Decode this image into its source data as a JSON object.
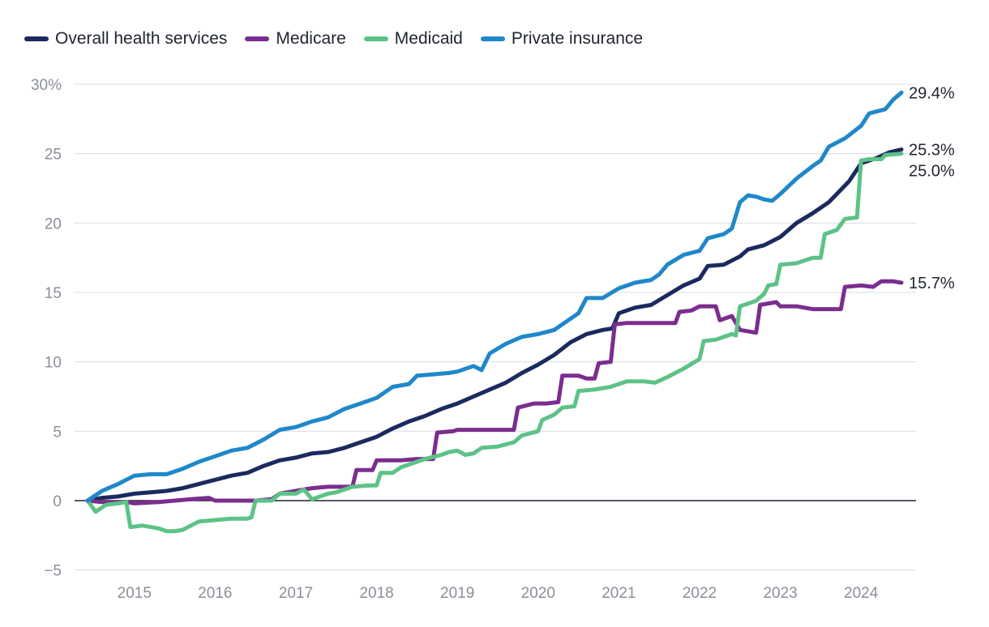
{
  "chart_data": {
    "type": "line",
    "title": "",
    "xlabel": "",
    "ylabel": "",
    "ylim": [
      -5,
      30
    ],
    "xlim": [
      2014.42,
      2024.5
    ],
    "yticks": [
      {
        "value": 30,
        "label": "30%"
      },
      {
        "value": 25,
        "label": "25"
      },
      {
        "value": 20,
        "label": "20"
      },
      {
        "value": 15,
        "label": "15"
      },
      {
        "value": 10,
        "label": "10"
      },
      {
        "value": 5,
        "label": "5"
      },
      {
        "value": 0,
        "label": "0"
      },
      {
        "value": -5,
        "label": "−5"
      }
    ],
    "xticks": [
      {
        "value": 2015,
        "label": "2015"
      },
      {
        "value": 2016,
        "label": "2016"
      },
      {
        "value": 2017,
        "label": "2017"
      },
      {
        "value": 2018,
        "label": "2018"
      },
      {
        "value": 2019,
        "label": "2019"
      },
      {
        "value": 2020,
        "label": "2020"
      },
      {
        "value": 2021,
        "label": "2021"
      },
      {
        "value": 2022,
        "label": "2022"
      },
      {
        "value": 2023,
        "label": "2023"
      },
      {
        "value": 2024,
        "label": "2024"
      }
    ],
    "legend_position": "top-left",
    "series": [
      {
        "name": "Overall health services",
        "color": "#1b2a5e",
        "end_label": "25.3%",
        "points": [
          [
            2014.42,
            0
          ],
          [
            2014.6,
            0.2
          ],
          [
            2014.8,
            0.3
          ],
          [
            2015.0,
            0.5
          ],
          [
            2015.2,
            0.6
          ],
          [
            2015.4,
            0.7
          ],
          [
            2015.6,
            0.9
          ],
          [
            2015.8,
            1.2
          ],
          [
            2016.0,
            1.5
          ],
          [
            2016.2,
            1.8
          ],
          [
            2016.4,
            2.0
          ],
          [
            2016.6,
            2.5
          ],
          [
            2016.8,
            2.9
          ],
          [
            2017.0,
            3.1
          ],
          [
            2017.2,
            3.4
          ],
          [
            2017.4,
            3.5
          ],
          [
            2017.6,
            3.8
          ],
          [
            2017.8,
            4.2
          ],
          [
            2018.0,
            4.6
          ],
          [
            2018.2,
            5.2
          ],
          [
            2018.4,
            5.7
          ],
          [
            2018.6,
            6.1
          ],
          [
            2018.8,
            6.6
          ],
          [
            2019.0,
            7.0
          ],
          [
            2019.2,
            7.5
          ],
          [
            2019.4,
            8.0
          ],
          [
            2019.6,
            8.5
          ],
          [
            2019.8,
            9.2
          ],
          [
            2020.0,
            9.8
          ],
          [
            2020.2,
            10.5
          ],
          [
            2020.4,
            11.4
          ],
          [
            2020.6,
            12.0
          ],
          [
            2020.8,
            12.3
          ],
          [
            2020.92,
            12.4
          ],
          [
            2021.0,
            13.5
          ],
          [
            2021.2,
            13.9
          ],
          [
            2021.4,
            14.1
          ],
          [
            2021.6,
            14.8
          ],
          [
            2021.8,
            15.5
          ],
          [
            2022.0,
            16.0
          ],
          [
            2022.1,
            16.9
          ],
          [
            2022.3,
            17.0
          ],
          [
            2022.5,
            17.6
          ],
          [
            2022.6,
            18.1
          ],
          [
            2022.8,
            18.4
          ],
          [
            2023.0,
            19.0
          ],
          [
            2023.2,
            20.0
          ],
          [
            2023.4,
            20.7
          ],
          [
            2023.6,
            21.5
          ],
          [
            2023.75,
            22.4
          ],
          [
            2023.85,
            23.0
          ],
          [
            2024.0,
            24.3
          ],
          [
            2024.2,
            24.7
          ],
          [
            2024.35,
            25.1
          ],
          [
            2024.5,
            25.3
          ]
        ]
      },
      {
        "name": "Medicare",
        "color": "#7b2d8e",
        "end_label": "15.7%",
        "points": [
          [
            2014.42,
            0
          ],
          [
            2014.6,
            -0.1
          ],
          [
            2014.9,
            -0.1
          ],
          [
            2015.0,
            -0.2
          ],
          [
            2015.3,
            -0.1
          ],
          [
            2015.5,
            0.0
          ],
          [
            2015.7,
            0.1
          ],
          [
            2015.92,
            0.2
          ],
          [
            2016.0,
            0.0
          ],
          [
            2016.3,
            0.0
          ],
          [
            2016.5,
            0.0
          ],
          [
            2016.7,
            0.1
          ],
          [
            2016.8,
            0.5
          ],
          [
            2017.0,
            0.7
          ],
          [
            2017.2,
            0.9
          ],
          [
            2017.4,
            1.0
          ],
          [
            2017.6,
            1.0
          ],
          [
            2017.7,
            1.0
          ],
          [
            2017.75,
            2.2
          ],
          [
            2017.95,
            2.2
          ],
          [
            2018.0,
            2.9
          ],
          [
            2018.3,
            2.9
          ],
          [
            2018.5,
            3.0
          ],
          [
            2018.7,
            3.0
          ],
          [
            2018.75,
            4.9
          ],
          [
            2018.95,
            5.0
          ],
          [
            2019.0,
            5.1
          ],
          [
            2019.3,
            5.1
          ],
          [
            2019.5,
            5.1
          ],
          [
            2019.7,
            5.1
          ],
          [
            2019.75,
            6.7
          ],
          [
            2019.95,
            7.0
          ],
          [
            2020.1,
            7.0
          ],
          [
            2020.25,
            7.1
          ],
          [
            2020.3,
            9.0
          ],
          [
            2020.5,
            9.0
          ],
          [
            2020.6,
            8.8
          ],
          [
            2020.7,
            8.8
          ],
          [
            2020.75,
            9.9
          ],
          [
            2020.9,
            10.0
          ],
          [
            2020.95,
            12.7
          ],
          [
            2021.1,
            12.8
          ],
          [
            2021.4,
            12.8
          ],
          [
            2021.6,
            12.8
          ],
          [
            2021.7,
            12.8
          ],
          [
            2021.75,
            13.6
          ],
          [
            2021.9,
            13.7
          ],
          [
            2022.0,
            14.0
          ],
          [
            2022.2,
            14.0
          ],
          [
            2022.25,
            13.0
          ],
          [
            2022.4,
            13.3
          ],
          [
            2022.5,
            12.3
          ],
          [
            2022.7,
            12.1
          ],
          [
            2022.75,
            14.1
          ],
          [
            2022.95,
            14.3
          ],
          [
            2023.0,
            14.0
          ],
          [
            2023.2,
            14.0
          ],
          [
            2023.4,
            13.8
          ],
          [
            2023.6,
            13.8
          ],
          [
            2023.75,
            13.8
          ],
          [
            2023.8,
            15.4
          ],
          [
            2024.0,
            15.5
          ],
          [
            2024.15,
            15.4
          ],
          [
            2024.25,
            15.8
          ],
          [
            2024.4,
            15.8
          ],
          [
            2024.5,
            15.7
          ]
        ]
      },
      {
        "name": "Medicaid",
        "color": "#5dc287",
        "end_label": "25.0%",
        "points": [
          [
            2014.42,
            0
          ],
          [
            2014.52,
            -0.8
          ],
          [
            2014.65,
            -0.3
          ],
          [
            2014.8,
            -0.2
          ],
          [
            2014.9,
            -0.1
          ],
          [
            2014.95,
            -1.9
          ],
          [
            2015.1,
            -1.8
          ],
          [
            2015.3,
            -2.0
          ],
          [
            2015.4,
            -2.2
          ],
          [
            2015.5,
            -2.2
          ],
          [
            2015.6,
            -2.1
          ],
          [
            2015.7,
            -1.8
          ],
          [
            2015.8,
            -1.5
          ],
          [
            2016.0,
            -1.4
          ],
          [
            2016.2,
            -1.3
          ],
          [
            2016.4,
            -1.3
          ],
          [
            2016.45,
            -1.2
          ],
          [
            2016.5,
            0.0
          ],
          [
            2016.7,
            0.0
          ],
          [
            2016.8,
            0.5
          ],
          [
            2017.0,
            0.5
          ],
          [
            2017.1,
            0.8
          ],
          [
            2017.2,
            0.1
          ],
          [
            2017.4,
            0.5
          ],
          [
            2017.5,
            0.6
          ],
          [
            2017.7,
            1.0
          ],
          [
            2017.9,
            1.1
          ],
          [
            2018.0,
            1.1
          ],
          [
            2018.05,
            2.0
          ],
          [
            2018.2,
            2.0
          ],
          [
            2018.3,
            2.4
          ],
          [
            2018.5,
            2.8
          ],
          [
            2018.6,
            3.0
          ],
          [
            2018.8,
            3.3
          ],
          [
            2018.9,
            3.5
          ],
          [
            2019.0,
            3.6
          ],
          [
            2019.1,
            3.3
          ],
          [
            2019.2,
            3.4
          ],
          [
            2019.3,
            3.8
          ],
          [
            2019.5,
            3.9
          ],
          [
            2019.7,
            4.2
          ],
          [
            2019.8,
            4.7
          ],
          [
            2020.0,
            5.0
          ],
          [
            2020.05,
            5.8
          ],
          [
            2020.2,
            6.2
          ],
          [
            2020.3,
            6.7
          ],
          [
            2020.45,
            6.8
          ],
          [
            2020.5,
            7.9
          ],
          [
            2020.7,
            8.0
          ],
          [
            2020.9,
            8.2
          ],
          [
            2020.95,
            8.3
          ],
          [
            2021.1,
            8.6
          ],
          [
            2021.3,
            8.6
          ],
          [
            2021.45,
            8.5
          ],
          [
            2021.6,
            8.9
          ],
          [
            2021.8,
            9.5
          ],
          [
            2022.0,
            10.2
          ],
          [
            2022.05,
            11.5
          ],
          [
            2022.2,
            11.6
          ],
          [
            2022.4,
            12.0
          ],
          [
            2022.45,
            11.9
          ],
          [
            2022.5,
            14.0
          ],
          [
            2022.6,
            14.2
          ],
          [
            2022.7,
            14.4
          ],
          [
            2022.8,
            14.9
          ],
          [
            2022.85,
            15.5
          ],
          [
            2022.95,
            15.6
          ],
          [
            2023.0,
            17.0
          ],
          [
            2023.2,
            17.1
          ],
          [
            2023.4,
            17.5
          ],
          [
            2023.5,
            17.5
          ],
          [
            2023.55,
            19.2
          ],
          [
            2023.7,
            19.5
          ],
          [
            2023.8,
            20.3
          ],
          [
            2023.95,
            20.4
          ],
          [
            2024.0,
            24.5
          ],
          [
            2024.1,
            24.6
          ],
          [
            2024.25,
            24.6
          ],
          [
            2024.3,
            24.9
          ],
          [
            2024.5,
            25.0
          ]
        ]
      },
      {
        "name": "Private insurance",
        "color": "#1f88c9",
        "end_label": "29.4%",
        "points": [
          [
            2014.42,
            0
          ],
          [
            2014.6,
            0.7
          ],
          [
            2014.8,
            1.2
          ],
          [
            2015.0,
            1.8
          ],
          [
            2015.2,
            1.9
          ],
          [
            2015.4,
            1.9
          ],
          [
            2015.6,
            2.3
          ],
          [
            2015.8,
            2.8
          ],
          [
            2016.0,
            3.2
          ],
          [
            2016.2,
            3.6
          ],
          [
            2016.4,
            3.8
          ],
          [
            2016.6,
            4.4
          ],
          [
            2016.8,
            5.1
          ],
          [
            2017.0,
            5.3
          ],
          [
            2017.2,
            5.7
          ],
          [
            2017.4,
            6.0
          ],
          [
            2017.6,
            6.6
          ],
          [
            2017.8,
            7.0
          ],
          [
            2018.0,
            7.4
          ],
          [
            2018.2,
            8.2
          ],
          [
            2018.4,
            8.4
          ],
          [
            2018.5,
            9.0
          ],
          [
            2018.7,
            9.1
          ],
          [
            2018.9,
            9.2
          ],
          [
            2019.0,
            9.3
          ],
          [
            2019.2,
            9.7
          ],
          [
            2019.3,
            9.4
          ],
          [
            2019.4,
            10.6
          ],
          [
            2019.6,
            11.3
          ],
          [
            2019.8,
            11.8
          ],
          [
            2020.0,
            12.0
          ],
          [
            2020.2,
            12.3
          ],
          [
            2020.35,
            12.9
          ],
          [
            2020.5,
            13.5
          ],
          [
            2020.6,
            14.6
          ],
          [
            2020.8,
            14.6
          ],
          [
            2021.0,
            15.3
          ],
          [
            2021.2,
            15.7
          ],
          [
            2021.4,
            15.9
          ],
          [
            2021.5,
            16.3
          ],
          [
            2021.6,
            17.0
          ],
          [
            2021.8,
            17.7
          ],
          [
            2022.0,
            18.0
          ],
          [
            2022.1,
            18.9
          ],
          [
            2022.3,
            19.2
          ],
          [
            2022.4,
            19.6
          ],
          [
            2022.5,
            21.5
          ],
          [
            2022.6,
            22.0
          ],
          [
            2022.7,
            21.9
          ],
          [
            2022.8,
            21.7
          ],
          [
            2022.9,
            21.6
          ],
          [
            2023.0,
            22.1
          ],
          [
            2023.2,
            23.2
          ],
          [
            2023.4,
            24.1
          ],
          [
            2023.5,
            24.5
          ],
          [
            2023.6,
            25.5
          ],
          [
            2023.8,
            26.1
          ],
          [
            2024.0,
            27.0
          ],
          [
            2024.1,
            27.9
          ],
          [
            2024.3,
            28.2
          ],
          [
            2024.4,
            28.9
          ],
          [
            2024.5,
            29.4
          ]
        ]
      }
    ]
  }
}
